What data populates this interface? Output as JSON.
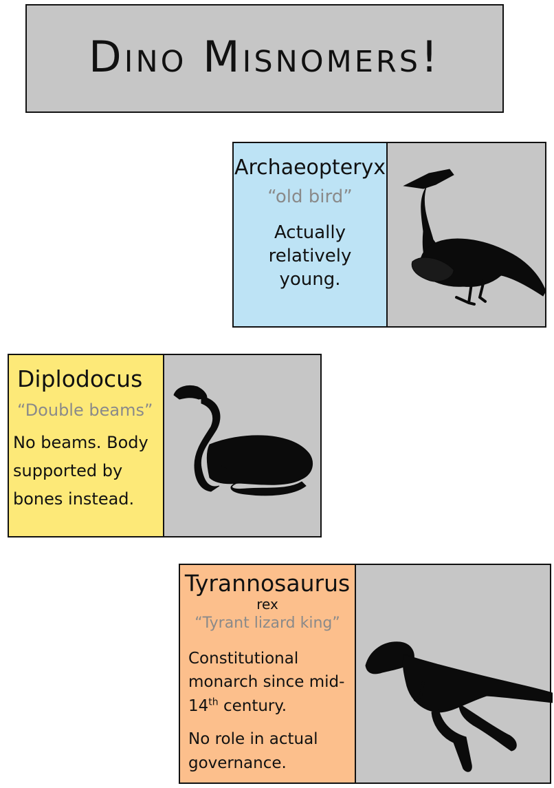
{
  "title": "Dino Misnomers!",
  "colors": {
    "archaeopteryx_panel": "#bde3f5",
    "diplodocus_panel": "#fde978",
    "trex_panel": "#fcbf8c",
    "image_bg": "#c6c6c6",
    "meaning_text": "#8a8a8a"
  },
  "cards": [
    {
      "name": "Archaeopteryx",
      "meaning": "“old bird”",
      "fact": "Actually relatively young.",
      "icon": "archaeopteryx-silhouette"
    },
    {
      "name": "Diplodocus",
      "meaning": "“Double beams”",
      "fact": "No beams. Body supported by bones instead.",
      "icon": "diplodocus-silhouette"
    },
    {
      "name": "Tyrannosaurus",
      "subname": "rex",
      "meaning": "“Tyrant lizard king”",
      "fact_1": "Constitutional monarch since mid-14",
      "fact_1_sup": "th",
      "fact_1_end": " century.",
      "fact_2": "No role in actual governance.",
      "icon": "tyrannosaurus-silhouette"
    }
  ]
}
